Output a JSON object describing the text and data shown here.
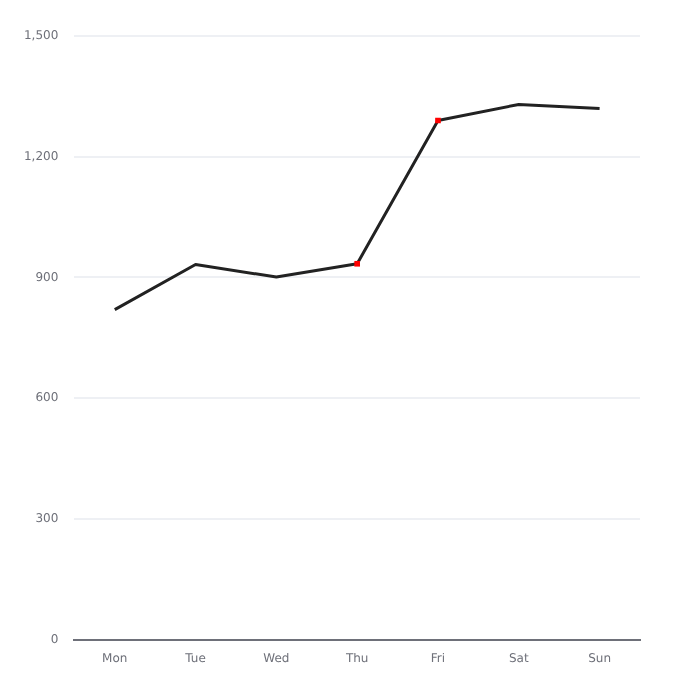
{
  "chart_data": {
    "type": "line",
    "categories": [
      "Mon",
      "Tue",
      "Wed",
      "Thu",
      "Fri",
      "Sat",
      "Sun"
    ],
    "series": [
      {
        "color": "#222222",
        "marker": "none",
        "values": [
          820,
          932,
          901,
          934,
          1290,
          1330,
          1320
        ]
      },
      {
        "type": "scatter",
        "marker": "square",
        "x": [
          "Thu",
          "Fri"
        ],
        "color": "#ff0000",
        "values": [
          934,
          1290
        ]
      }
    ],
    "ylim": [
      0,
      1500
    ],
    "yticks": [
      0,
      {
        "value": 300,
        "label": "300"
      },
      {
        "value": 600,
        "label": "600"
      },
      {
        "value": 900,
        "label": "900"
      },
      {
        "value": 1200,
        "label": "1,200"
      },
      {
        "value": 1500,
        "label": "1,500"
      }
    ],
    "grid": "y",
    "legend": false,
    "line_style": "solid"
  }
}
